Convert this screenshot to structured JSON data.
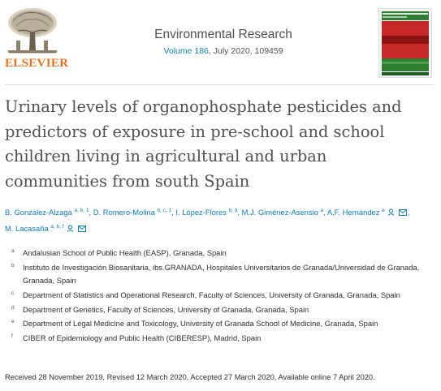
{
  "header": {
    "publisher_logo_text": "ELSEVIER",
    "journal_title": "Environmental Research",
    "volume_label": "Volume 186",
    "issue_info": ", July 2020, 109459",
    "cover_title_text": "ENVIRONMENTAL RESEARCH"
  },
  "article": {
    "title": "Urinary levels of organophosphate pesticides and predictors of exposure in pre-school and school children living in agricultural and urban communities from south Spain"
  },
  "authors": [
    {
      "name": "B. González-Alzaga",
      "sup": "a, b, 1",
      "sep": ", "
    },
    {
      "name": "D. Romero-Molina",
      "sup": "b, c, 1",
      "sep": ", "
    },
    {
      "name": "I. López-Flores",
      "sup": "b, d",
      "sep": ", "
    },
    {
      "name": "M.J. Giménez-Asensio",
      "sup": "a",
      "sep": ", "
    },
    {
      "name": "A.F. Hernández",
      "sup": "e",
      "sep": ""
    },
    {
      "name": "M. Lacasaña",
      "sup": "a, b, f",
      "sep": ""
    }
  ],
  "affiliations": [
    {
      "label": "a",
      "text": "Andalusian School of Public Health (EASP), Granada, Spain"
    },
    {
      "label": "b",
      "text": "Instituto de Investigación Biosanitaria, ibs.GRANADA, Hospitales Universitarios de Granada/Universidad de Granada, Granada, Spain"
    },
    {
      "label": "c",
      "text": "Department of Statistics and Operational Research, Faculty of Sciences, University of Granada, Granada, Spain"
    },
    {
      "label": "d",
      "text": "Department of Genetics, Faculty of Sciences, University of Granada, Granada, Spain"
    },
    {
      "label": "e",
      "text": "Department of Legal Medicine and Toxicology, University of Granada School of Medicine, Granada, Spain"
    },
    {
      "label": "f",
      "text": "CIBER of Epidemiology and Public Health (CIBERESP), Madrid, Spain"
    }
  ],
  "history": "Received 28 November 2019, Revised 12 March 2020, Accepted 27 March 2020, Available online 7 April 2020.",
  "colors": {
    "link": "#0c7dbb",
    "elsevier_orange": "#e9711c",
    "title_grey": "#505050"
  },
  "icons": [
    "person-icon",
    "email-icon"
  ]
}
